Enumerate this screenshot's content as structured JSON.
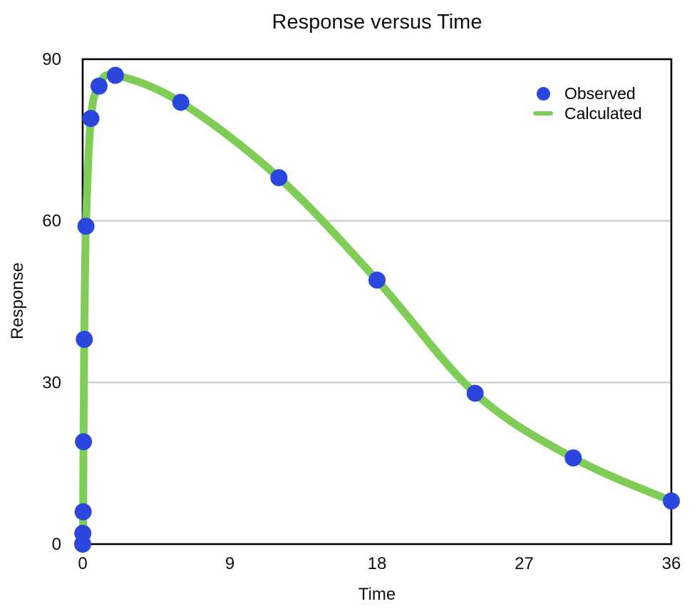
{
  "chart_data": {
    "type": "scatter",
    "title": "Response versus Time",
    "xlabel": "Time",
    "ylabel": "Response",
    "xlim": [
      0,
      36
    ],
    "ylim": [
      0,
      90
    ],
    "x_ticks": [
      0,
      9,
      18,
      27,
      36
    ],
    "y_ticks": [
      0,
      30,
      60,
      90
    ],
    "gridlines_y": [
      30,
      60
    ],
    "grid": "horizontal-only",
    "legend_position": "top-right-inside",
    "x": [
      0,
      0.01,
      0.03,
      0.05,
      0.1,
      0.2,
      0.5,
      1,
      2,
      6,
      12,
      18,
      24,
      30,
      36
    ],
    "series": [
      {
        "name": "Observed",
        "type": "scatter",
        "color": "#2b46dd",
        "values": [
          0,
          2,
          6,
          19,
          38,
          59,
          79,
          85,
          87,
          82,
          68,
          49,
          28,
          16,
          8
        ]
      },
      {
        "name": "Calculated",
        "type": "line",
        "color": "#7fcd57",
        "values": [
          0,
          2,
          6,
          19,
          38,
          59,
          79,
          85,
          87,
          82,
          68,
          49,
          28,
          16,
          8
        ]
      }
    ],
    "colors": {
      "frame": "#000000",
      "grid": "#c8c8c8",
      "text": "#111111",
      "background": "#ffffff"
    }
  }
}
